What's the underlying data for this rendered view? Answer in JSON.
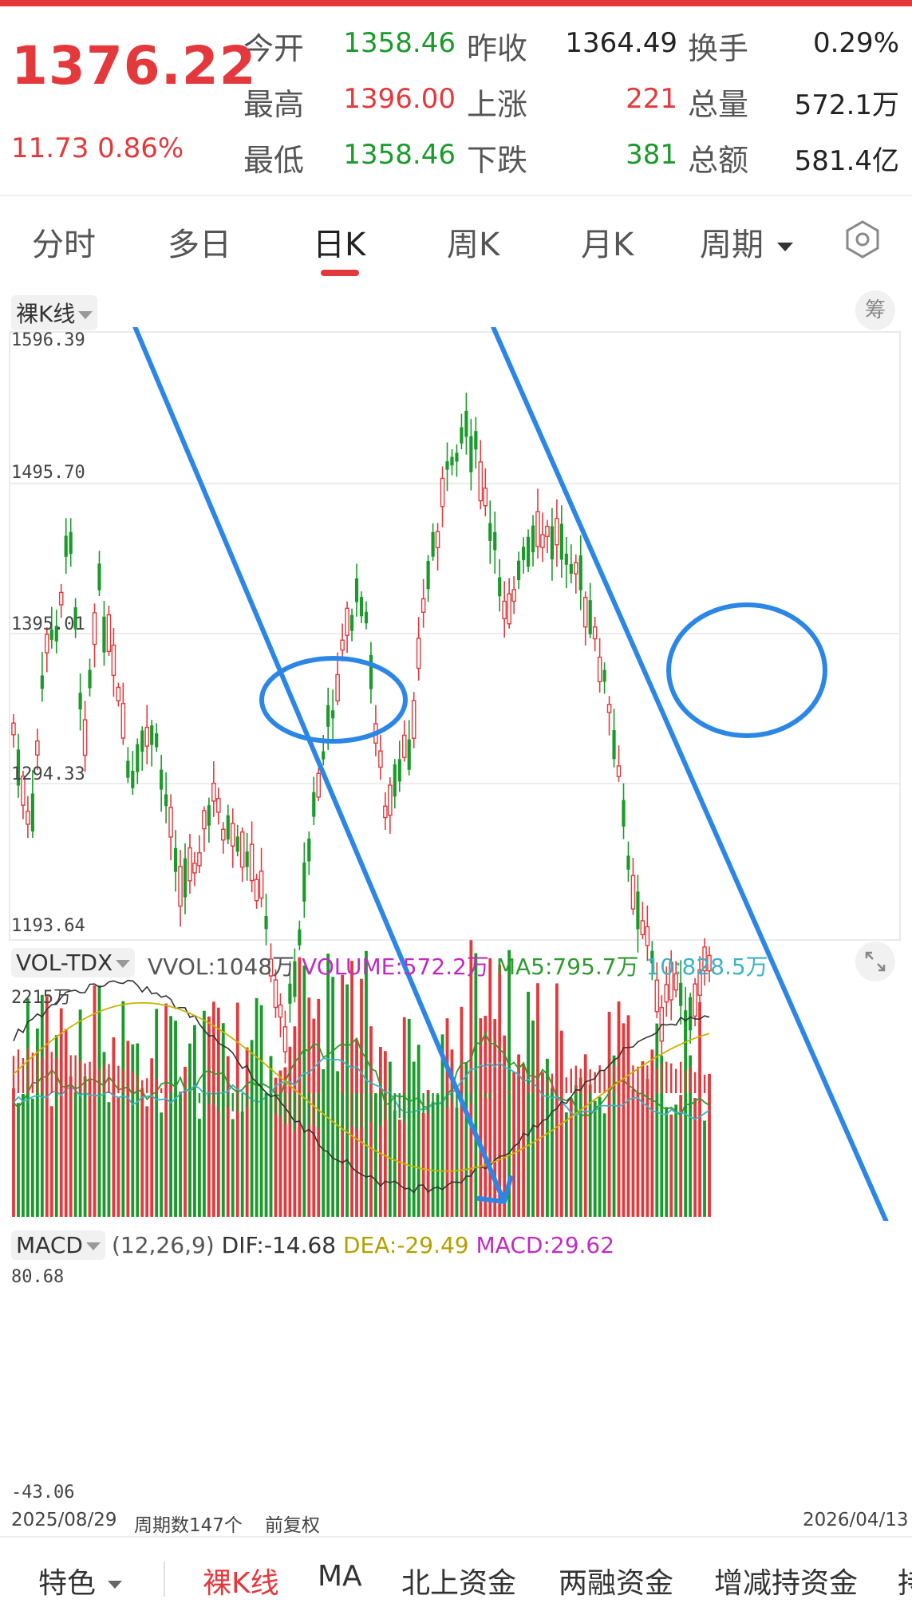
{
  "quote": {
    "price": "1376.22",
    "change": "11.73 0.86%",
    "rows": [
      [
        {
          "label": "今开",
          "value": "1358.46",
          "color": "green"
        },
        {
          "label": "昨收",
          "value": "1364.49",
          "color": "dark"
        },
        {
          "label": "换手",
          "value": "0.29%",
          "color": "dark"
        }
      ],
      [
        {
          "label": "最高",
          "value": "1396.00",
          "color": "red"
        },
        {
          "label": "上涨",
          "value": "221",
          "color": "red"
        },
        {
          "label": "总量",
          "value": "572.1万",
          "color": "dark"
        }
      ],
      [
        {
          "label": "最低",
          "value": "1358.46",
          "color": "green"
        },
        {
          "label": "下跌",
          "value": "381",
          "color": "green"
        },
        {
          "label": "总额",
          "value": "581.4亿",
          "color": "dark"
        }
      ]
    ]
  },
  "tabs": {
    "items": [
      "分时",
      "多日",
      "日K",
      "周K",
      "月K",
      "周期"
    ],
    "active": "日K",
    "settings_icon": "hexagon-settings-icon"
  },
  "kline": {
    "indicator": "裸K线",
    "chip_button": "筹",
    "price_labels": [
      "1596.39",
      "1495.70",
      "1395.01",
      "1294.33",
      "1193.64"
    ]
  },
  "volume": {
    "indicator": "VOL-TDX",
    "vvol": "VVOL:1048万",
    "volume": "VOLUME:572.2万",
    "ma5": "MA5:795.7万",
    "ma10": "10:828.5万",
    "max_label": "2215万",
    "expand_icon": "expand-icon"
  },
  "macd": {
    "indicator": "MACD",
    "params": "(12,26,9)",
    "dif": "DIF:-14.68",
    "dea": "DEA:-29.49",
    "macd": "MACD:29.62",
    "top_label": "80.68",
    "bottom_label": "-43.06"
  },
  "footer": {
    "start_date": "2025/08/29",
    "period_count": "周期数147个",
    "adjust": "前复权",
    "end_date": "2026/04/13"
  },
  "bottom_tabs": {
    "special": "特色",
    "items": [
      "裸K线",
      "MA",
      "北上资金",
      "两融资金",
      "增减持资金",
      "持"
    ],
    "active": "裸K线"
  },
  "colors": {
    "up": "#e4393c",
    "down": "#1a9a2a",
    "annotation": "#2b86e6",
    "ma5": "#2e9a2e",
    "ma10": "#3bb3c3",
    "dif": "#333333",
    "dea": "#c8b400",
    "macd_text": "#c02cc0"
  }
}
